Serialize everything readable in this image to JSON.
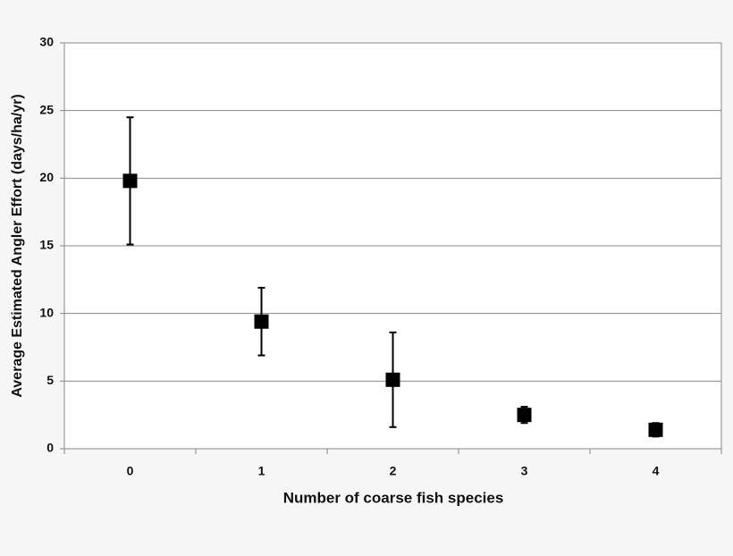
{
  "chart_data": {
    "type": "errorbar",
    "x_label": "Number of coarse fish species",
    "y_label": "Average Estimated Angler Effort (days/ha/yr)",
    "categories": [
      "0",
      "1",
      "2",
      "3",
      "4"
    ],
    "values": [
      19.8,
      9.4,
      5.1,
      2.5,
      1.4
    ],
    "errors": [
      4.7,
      2.5,
      3.5,
      0.6,
      0.5
    ],
    "color": "#000000",
    "ylim": [
      0,
      30
    ],
    "yticks": [
      0,
      5,
      10,
      15,
      20,
      25,
      30
    ],
    "grid": true
  }
}
